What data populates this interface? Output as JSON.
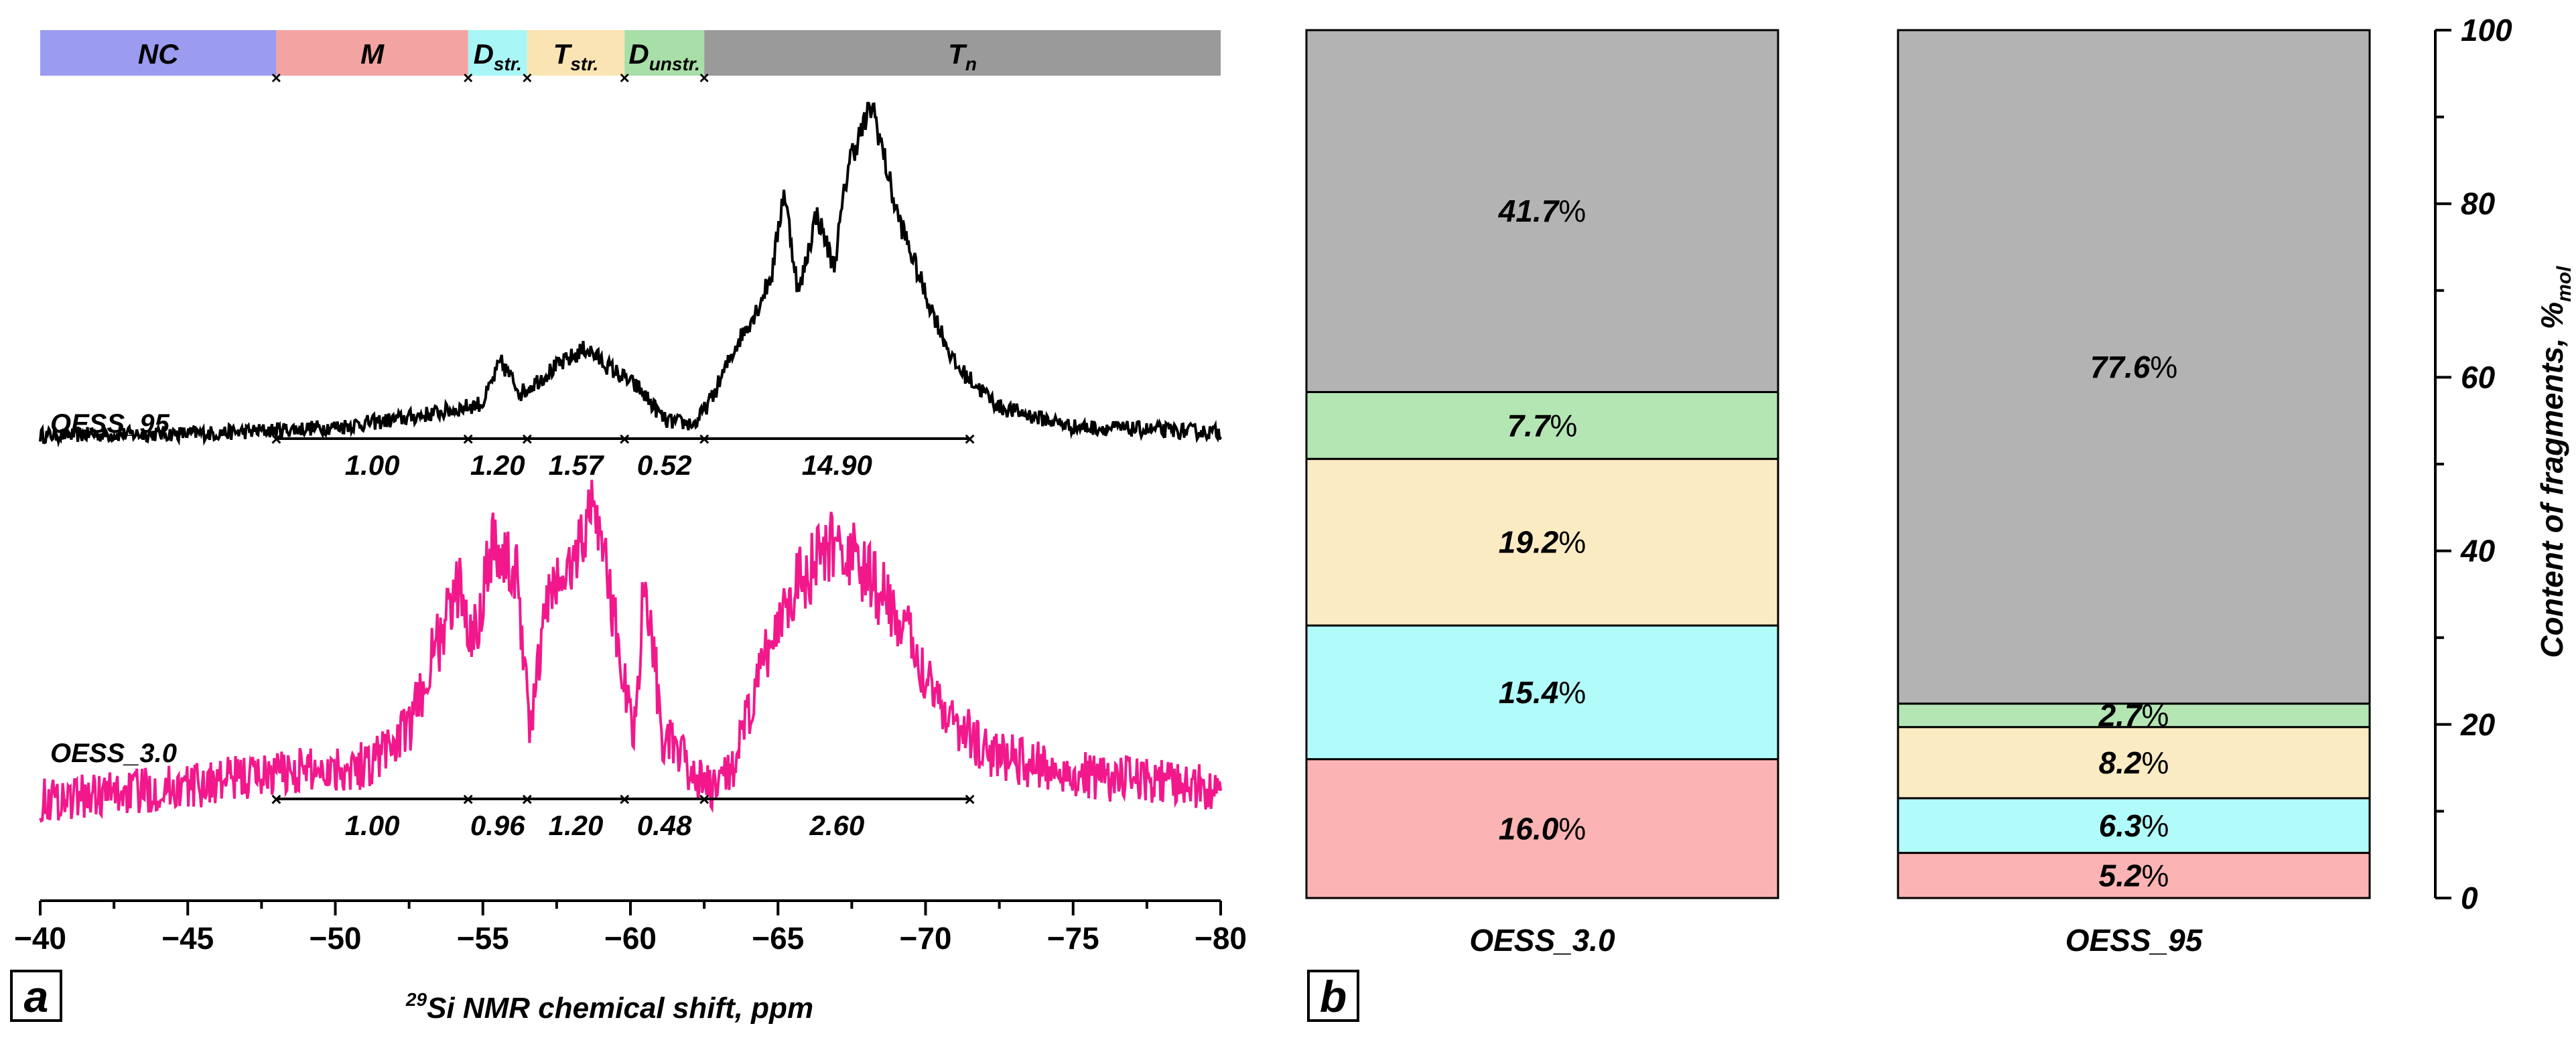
{
  "panel_a": {
    "panel_label": "a",
    "xlabel_sup": "29",
    "xlabel_main": "Si NMR chemical shift, ppm",
    "chart_data": {
      "type": "line",
      "title": "",
      "xlabel": "29Si NMR chemical shift, ppm",
      "ylabel": "",
      "xlim": [
        -40,
        -80
      ],
      "x_ticks": [
        "-40",
        "-45",
        "-50",
        "-55",
        "-60",
        "-65",
        "-70",
        "-75",
        "-80"
      ],
      "regions": [
        {
          "id": "NC",
          "label": "NC",
          "sub": "",
          "from": -40,
          "to": -48,
          "color": "#9b9bf0"
        },
        {
          "id": "M",
          "label": "M",
          "sub": "",
          "from": -48,
          "to": -54.5,
          "color": "#f4a3a3"
        },
        {
          "id": "Dstr",
          "label": "D",
          "sub": "str.",
          "from": -54.5,
          "to": -56.5,
          "color": "#a8f6f6"
        },
        {
          "id": "Tstr",
          "label": "T",
          "sub": "str.",
          "from": -56.5,
          "to": -59.8,
          "color": "#fbe4b3"
        },
        {
          "id": "Dunstr",
          "label": "D",
          "sub": "unstr.",
          "from": -59.8,
          "to": -62.5,
          "color": "#a8dea8"
        },
        {
          "id": "Tn",
          "label": "T",
          "sub": "n",
          "from": -62.5,
          "to": -80,
          "color": "#9a9a9a"
        }
      ],
      "region_boundaries": [
        -48,
        -54.5,
        -56.5,
        -59.8,
        -62.5
      ],
      "integration_bounds": [
        -48,
        -54.5,
        -56.5,
        -59.8,
        -62.5,
        -71.5
      ],
      "series": [
        {
          "name": "OESS_95",
          "color": "#000000",
          "integrals": [
            "1.00",
            "1.20",
            "1.57",
            "0.52",
            "14.90"
          ],
          "x": [
            -40,
            -46,
            -50,
            -52,
            -54,
            -55,
            -55.6,
            -56.3,
            -57.3,
            -58.5,
            -59.3,
            -60.3,
            -61.2,
            -62.2,
            -62.8,
            -63.6,
            -64.3,
            -64.8,
            -65.2,
            -65.7,
            -66.3,
            -66.9,
            -67.4,
            -68.2,
            -69,
            -70,
            -71,
            -72.5,
            -75,
            -80
          ],
          "y": [
            0,
            0.15,
            0.6,
            1.1,
            1.8,
            2.3,
            5.2,
            3.0,
            4.6,
            6.2,
            4.8,
            3.3,
            1.0,
            0.8,
            2.8,
            6.5,
            9.0,
            11.5,
            17.5,
            10.0,
            15.8,
            12.0,
            19.5,
            23.5,
            16.0,
            10.0,
            5.0,
            2.0,
            0.6,
            0.2
          ]
        },
        {
          "name": "OESS_3.0",
          "color": "#f2188c",
          "integrals": [
            "1.00",
            "0.96",
            "1.20",
            "0.48",
            "2.60"
          ],
          "x": [
            -40,
            -45,
            -48,
            -51,
            -52.5,
            -53.3,
            -54.2,
            -54.7,
            -55.3,
            -56.2,
            -56.6,
            -57.2,
            -58,
            -58.8,
            -59.4,
            -60.1,
            -60.5,
            -61.1,
            -62.1,
            -62.8,
            -63.6,
            -64.4,
            -65.4,
            -66.2,
            -67,
            -68,
            -68.8,
            -69.8,
            -70.8,
            -72,
            -75,
            -80
          ],
          "y": [
            0,
            1.0,
            2.0,
            2.5,
            5.0,
            10.2,
            15.2,
            11.5,
            18.5,
            15.5,
            5.0,
            14.5,
            16.5,
            21.5,
            13.5,
            4.5,
            16.2,
            4.5,
            2.0,
            0.5,
            3.0,
            9.0,
            15.0,
            16.5,
            18.5,
            16.0,
            14.0,
            10.0,
            6.0,
            3.5,
            1.8,
            0.8
          ]
        }
      ]
    }
  },
  "panel_b": {
    "panel_label": "b",
    "ylabel_main": "Content of fragments, %",
    "ylabel_sub": "mol",
    "chart_data": {
      "type": "bar",
      "stacked": true,
      "title": "",
      "xlabel": "",
      "ylabel": "Content of fragments, %mol",
      "ylim": [
        0,
        100
      ],
      "y_ticks": [
        0,
        20,
        40,
        60,
        80,
        100
      ],
      "categories": [
        "OESS_3.0",
        "OESS_95"
      ],
      "series": [
        {
          "name": "M",
          "color": "#fbb3b3",
          "values": [
            16.0,
            5.2
          ],
          "labels": [
            "16.0",
            "5.2"
          ]
        },
        {
          "name": "D_str.",
          "color": "#b1fbfb",
          "values": [
            15.4,
            6.3
          ],
          "labels": [
            "15.4",
            "6.3"
          ]
        },
        {
          "name": "T_str.",
          "color": "#fbebc3",
          "values": [
            19.2,
            8.2
          ],
          "labels": [
            "19.2",
            "8.2"
          ]
        },
        {
          "name": "D_unstr.",
          "color": "#b4e6b4",
          "values": [
            7.7,
            2.7
          ],
          "labels": [
            "7.7",
            "2.7"
          ]
        },
        {
          "name": "T_n",
          "color": "#b3b3b3",
          "values": [
            41.7,
            77.6
          ],
          "labels": [
            "41.7",
            "77.6"
          ]
        }
      ]
    }
  }
}
